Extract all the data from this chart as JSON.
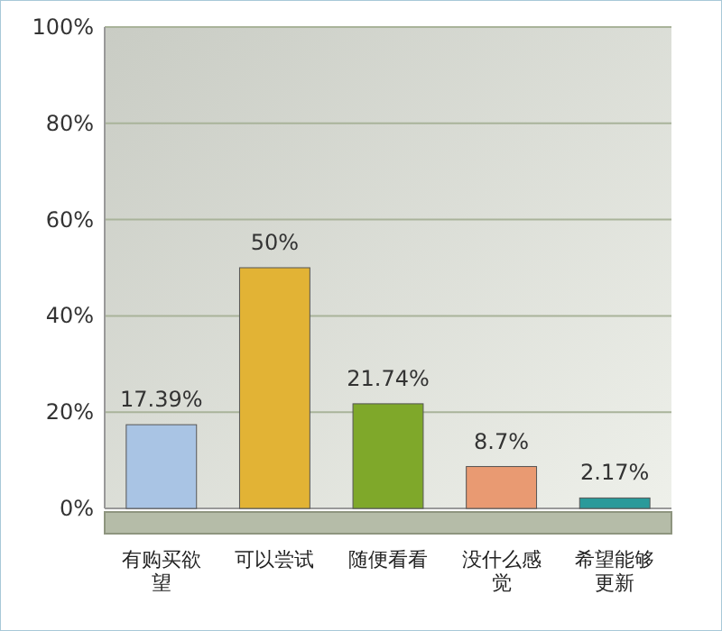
{
  "chart_data": {
    "type": "bar",
    "categories": [
      "有购买欲望",
      "可以尝试",
      "随便看看",
      "没什么感觉",
      "希望能够更新"
    ],
    "values": [
      17.39,
      50,
      21.74,
      8.7,
      2.17
    ],
    "colors": [
      "#a9c4e4",
      "#e2b335",
      "#7fa82a",
      "#e99a72",
      "#2a9a9a"
    ],
    "value_labels": [
      "17.39%",
      "50%",
      "21.74%",
      "8.7%",
      "2.17%"
    ],
    "ylim": [
      0,
      100
    ],
    "yticks": [
      {
        "value": 0,
        "label": "0%"
      },
      {
        "value": 20,
        "label": "20%"
      },
      {
        "value": 40,
        "label": "40%"
      },
      {
        "value": 60,
        "label": "60%"
      },
      {
        "value": 80,
        "label": "80%"
      },
      {
        "value": 100,
        "label": "100%"
      }
    ],
    "grid": "y"
  }
}
